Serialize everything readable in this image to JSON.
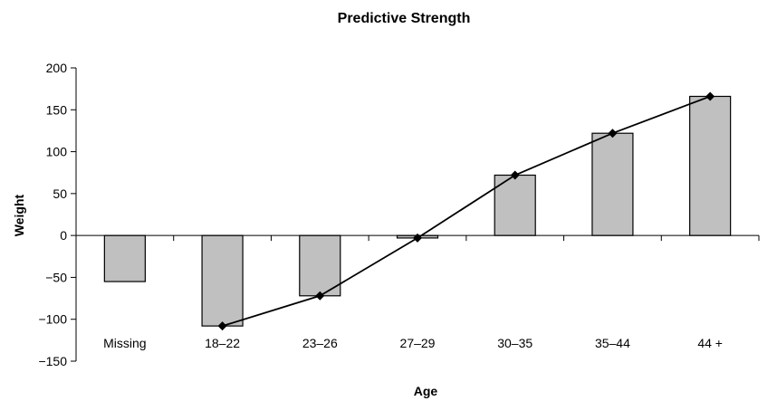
{
  "chart_data": {
    "type": "bar",
    "title": "Predictive Strength",
    "xlabel": "Age",
    "ylabel": "Weight",
    "categories": [
      "Missing",
      "18–22",
      "23–26",
      "27–29",
      "30–35",
      "35–44",
      "44 +"
    ],
    "series": [
      {
        "type": "bar",
        "values": [
          -55,
          -108,
          -72,
          -3,
          72,
          122,
          166
        ],
        "color": "#c0c0c0"
      },
      {
        "type": "line",
        "values": [
          null,
          -108,
          -72,
          -3,
          72,
          122,
          166
        ],
        "color": "#000000",
        "marker": "diamond"
      }
    ],
    "ylim": [
      -150,
      200
    ],
    "yticks": [
      -150,
      -100,
      -50,
      0,
      50,
      100,
      150,
      200
    ],
    "ytick_labels": [
      "−150",
      "−100",
      "−50",
      "0",
      "50",
      "100",
      "150",
      "200"
    ],
    "grid": false,
    "legend": "none"
  }
}
